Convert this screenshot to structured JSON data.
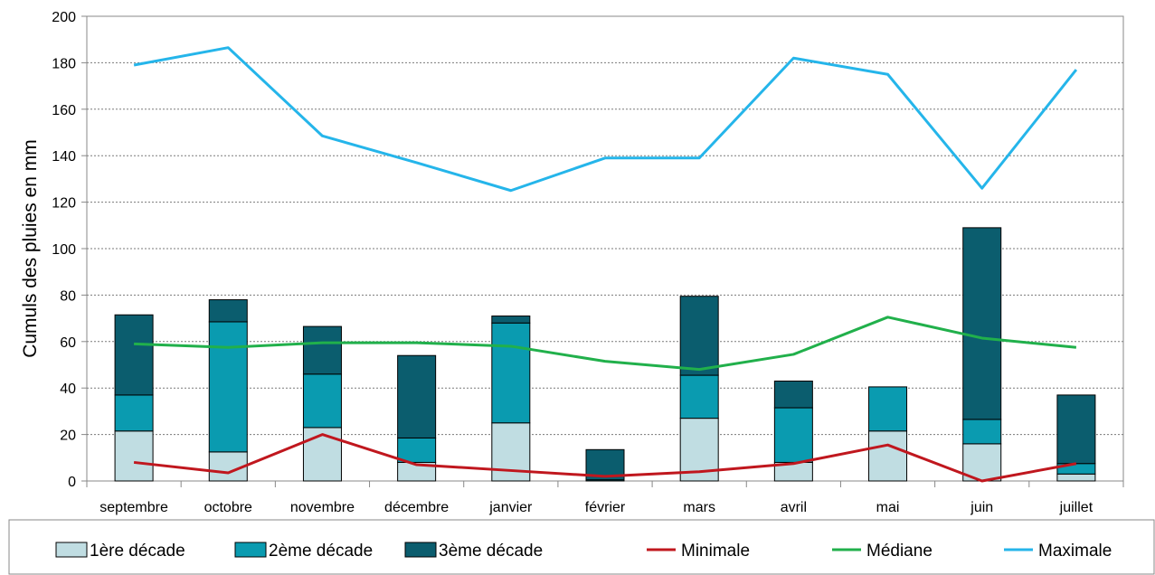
{
  "chart_data": {
    "type": "bar",
    "title": "",
    "xlabel": "",
    "ylabel": "Cumuls des pluies en mm",
    "ylim": [
      0,
      200
    ],
    "yticks": [
      0,
      20,
      40,
      60,
      80,
      100,
      120,
      140,
      160,
      180,
      200
    ],
    "grid": true,
    "legend_position": "bottom",
    "categories": [
      "septembre",
      "octobre",
      "novembre",
      "décembre",
      "janvier",
      "février",
      "mars",
      "avril",
      "mai",
      "juin",
      "juillet"
    ],
    "bar_series": [
      {
        "name": "1ère décade",
        "color": "#c0dde2",
        "stack": true,
        "values": [
          21.5,
          12.5,
          23,
          8,
          25,
          0,
          27,
          8,
          21.5,
          16,
          3
        ]
      },
      {
        "name": "2ème décade",
        "color": "#0a9bb0",
        "stack": true,
        "values": [
          15.5,
          56,
          23,
          10.5,
          43,
          0.5,
          18.5,
          23.5,
          19,
          10.5,
          4.5
        ]
      },
      {
        "name": "3ème décade",
        "color": "#0b5d6e",
        "stack": true,
        "values": [
          34.5,
          9.5,
          20.5,
          35.5,
          3,
          13,
          34,
          11.5,
          0,
          82.5,
          29.5
        ]
      }
    ],
    "line_series": [
      {
        "name": "Minimale",
        "color": "#c0171e",
        "values": [
          8,
          3.5,
          20,
          7,
          4.5,
          2,
          4,
          7.5,
          15.5,
          0,
          7.5
        ]
      },
      {
        "name": "Médiane",
        "color": "#21b04b",
        "values": [
          59,
          57.5,
          59.5,
          59.5,
          58,
          51.5,
          48,
          54.5,
          70.5,
          61.5,
          57.5
        ]
      },
      {
        "name": "Maximale",
        "color": "#25b5ea",
        "values": [
          179,
          186.5,
          148.5,
          137,
          125,
          139,
          139,
          182,
          175,
          126,
          177
        ]
      }
    ]
  }
}
